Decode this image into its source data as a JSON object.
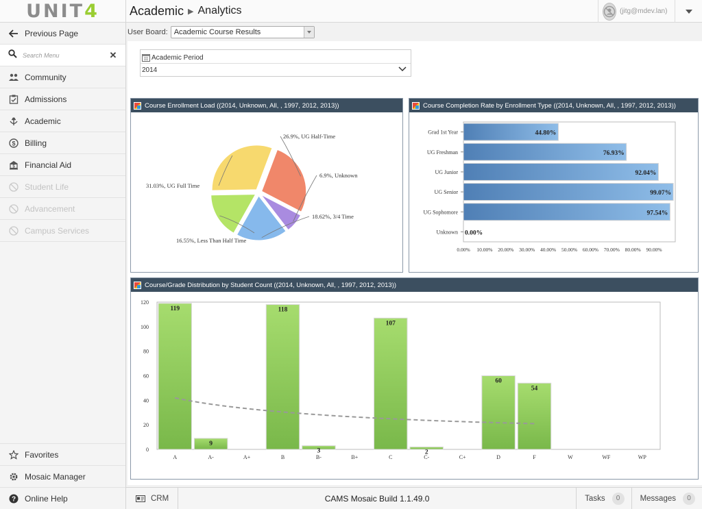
{
  "app": {
    "logo_main": "UNIT",
    "logo_accent": "4"
  },
  "sidebar": {
    "back_label": "Previous Page",
    "search_placeholder": "Search Menu",
    "items": [
      {
        "label": "Community",
        "icon": "community-icon",
        "enabled": true
      },
      {
        "label": "Admissions",
        "icon": "admissions-icon",
        "enabled": true
      },
      {
        "label": "Academic",
        "icon": "academic-icon",
        "enabled": true
      },
      {
        "label": "Billing",
        "icon": "billing-icon",
        "enabled": true
      },
      {
        "label": "Financial Aid",
        "icon": "financial-aid-icon",
        "enabled": true
      },
      {
        "label": "Student Life",
        "icon": "student-life-icon",
        "enabled": false
      },
      {
        "label": "Advancement",
        "icon": "advancement-icon",
        "enabled": false
      },
      {
        "label": "Campus Services",
        "icon": "campus-services-icon",
        "enabled": false
      }
    ],
    "bottom": {
      "favorites": "Favorites",
      "mosaic_manager": "Mosaic Manager",
      "online_help": "Online Help"
    }
  },
  "header": {
    "breadcrumb_root": "Academic",
    "breadcrumb_current": "Analytics",
    "user": "(jitg@mdev.lan)"
  },
  "userboard": {
    "label": "User Board:",
    "value": "Academic Course Results"
  },
  "filter": {
    "label": "Academic Period",
    "value": "2014"
  },
  "footer": {
    "crm": "CRM",
    "build": "CAMS Mosaic Build 1.1.49.0",
    "tasks_label": "Tasks",
    "tasks_count": "0",
    "messages_label": "Messages",
    "messages_count": "0"
  },
  "chart_data": [
    {
      "type": "pie",
      "title": "Course Enrollment Load  ((2014, Unknown, All, , 1997, 2012, 2013))",
      "slices": [
        {
          "label": "26.9%, UG Half-Time",
          "value": 26.9,
          "color": "#f0876a"
        },
        {
          "label": "6.9%, Unknown",
          "value": 6.9,
          "color": "#a98be0"
        },
        {
          "label": "18.62%, 3/4 Time",
          "value": 18.62,
          "color": "#86b9ec"
        },
        {
          "label": "16.55%, Less Than Half Time",
          "value": 16.55,
          "color": "#b4e466"
        },
        {
          "label": "31.03%, UG Full Time",
          "value": 31.03,
          "color": "#f7d96e"
        }
      ]
    },
    {
      "type": "bar",
      "orientation": "horizontal",
      "title": "Course Completion Rate by Enrollment Type  ((2014, Unknown, All, , 1997, 2012, 2013))",
      "categories": [
        "Grad 1st Year",
        "UG Freshman",
        "UG Junior",
        "UG Senior",
        "UG Sophomore",
        "Unknown"
      ],
      "values": [
        44.8,
        76.93,
        92.04,
        99.07,
        97.54,
        0.0
      ],
      "value_labels": [
        "44.80%",
        "76.93%",
        "92.04%",
        "99.07%",
        "97.54%",
        "0.00%"
      ],
      "xticks": [
        "0.00%",
        "10.00%",
        "20.00%",
        "30.00%",
        "40.00%",
        "50.00%",
        "60.00%",
        "70.00%",
        "80.00%",
        "90.00%"
      ],
      "xlim": [
        0,
        100
      ]
    },
    {
      "type": "bar",
      "title": "Course/Grade Distribution by Student Count  ((2014, Unknown, All, , 1997, 2012, 2013))",
      "categories": [
        "A",
        "A-",
        "A+",
        "B",
        "B-",
        "B+",
        "C",
        "C-",
        "C+",
        "D",
        "F",
        "W",
        "WF",
        "WP"
      ],
      "values": [
        119,
        9,
        0,
        118,
        3,
        0,
        107,
        2,
        0,
        60,
        54,
        0,
        0,
        0
      ],
      "value_labels": [
        "119",
        "9",
        "",
        "118",
        "3",
        "",
        "107",
        "2",
        "",
        "60",
        "54",
        "",
        "",
        ""
      ],
      "yticks": [
        "0",
        "20",
        "40",
        "60",
        "80",
        "100",
        "120"
      ],
      "ylim": [
        0,
        120
      ],
      "trendline": {
        "from_value": 42,
        "to_value": 21,
        "style": "dashed"
      }
    }
  ]
}
